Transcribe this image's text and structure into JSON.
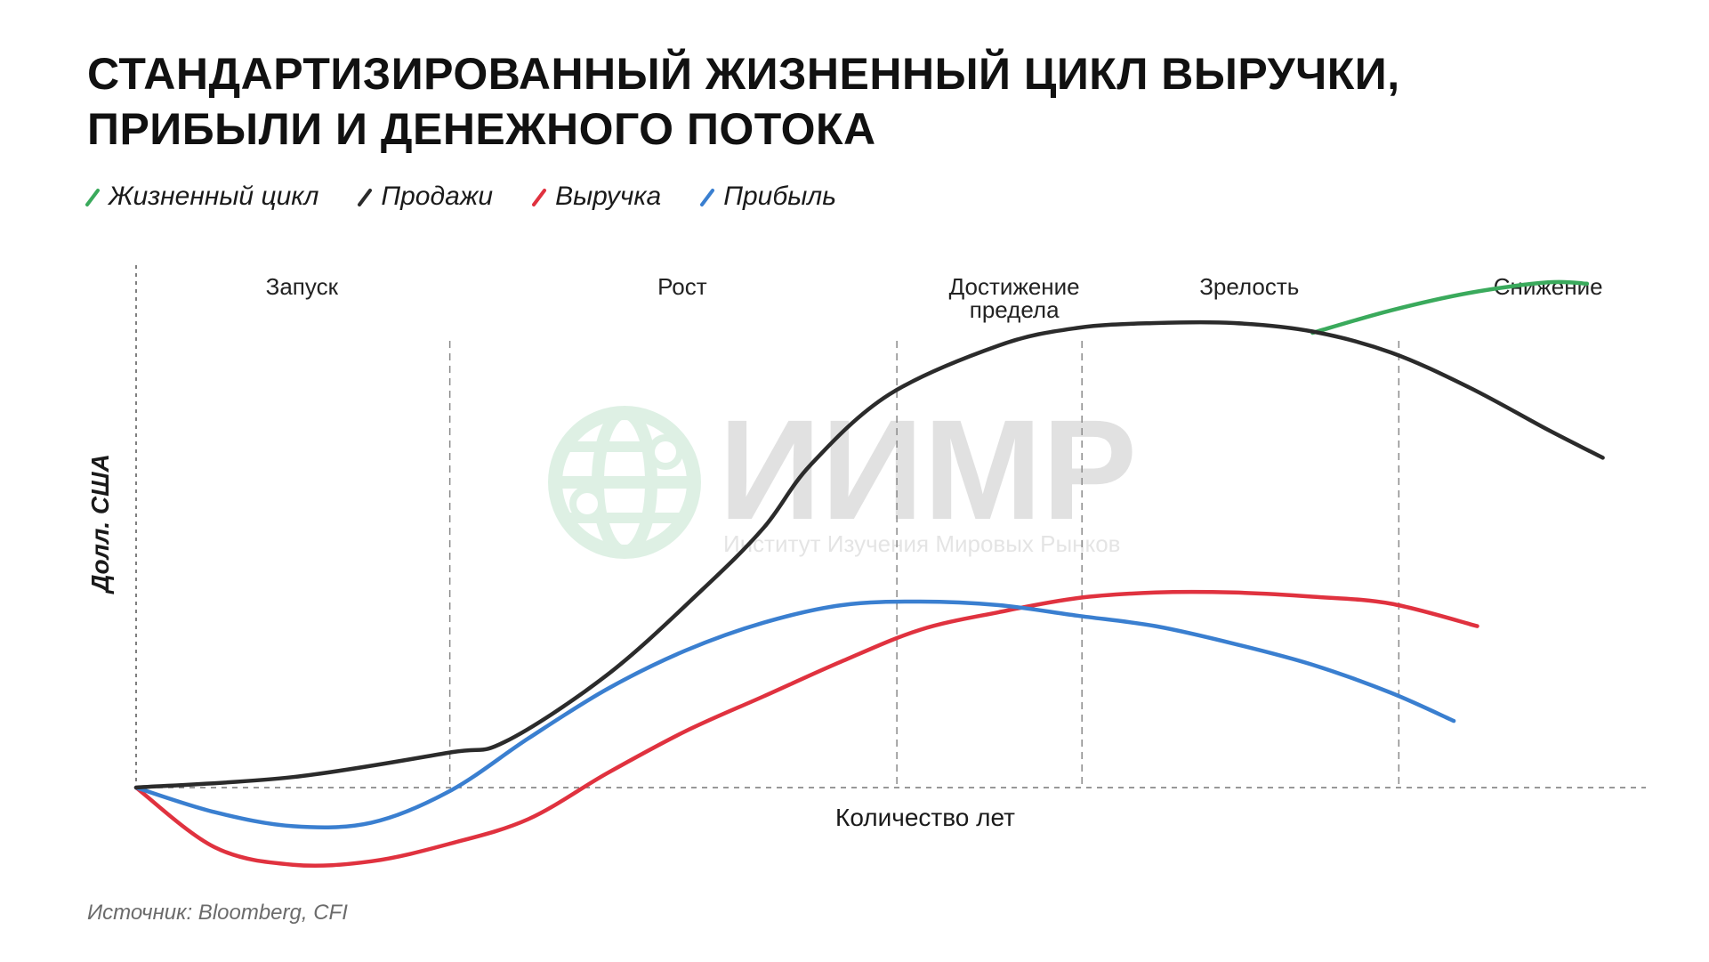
{
  "title": {
    "line1": "Стандартизированный жизненный цикл выручки,",
    "line2": "прибыли и денежного потока"
  },
  "legend": [
    {
      "label": "Жизненный цикл",
      "color": "#3aaa5c"
    },
    {
      "label": "Продажи",
      "color": "#2b2b2b"
    },
    {
      "label": "Выручка",
      "color": "#e0323f"
    },
    {
      "label": "Прибыль",
      "color": "#3a7fd0"
    }
  ],
  "source": "Источник: Bloomberg, CFI",
  "watermark": {
    "name": "ИИМР",
    "subtitle": "Институт Изучения Мировых Рынков",
    "icon": "globe-icon"
  },
  "chart_data": {
    "type": "line",
    "xlabel": "Количество лет",
    "ylabel": "Долл. США",
    "stages": [
      {
        "label": "Запуск",
        "start": 0,
        "end": 2
      },
      {
        "label": "Рост",
        "start": 2,
        "end": 4.85
      },
      {
        "label": "Достижение\nпредела",
        "start": 4.85,
        "end": 6.03
      },
      {
        "label": "Зрелость",
        "start": 6.03,
        "end": 8.05
      },
      {
        "label": "Снижение",
        "start": 8.05,
        "end": 9.5
      }
    ],
    "xlim": [
      0,
      9.5
    ],
    "ylim": [
      -1.1,
      7.0
    ],
    "series": [
      {
        "name": "Продажи",
        "color": "#2b2b2b",
        "points": [
          [
            0,
            0
          ],
          [
            1,
            0.15
          ],
          [
            2,
            0.5
          ],
          [
            2.35,
            0.65
          ],
          [
            3,
            1.6
          ],
          [
            3.6,
            2.8
          ],
          [
            4,
            3.7
          ],
          [
            4.3,
            4.6
          ],
          [
            4.8,
            5.6
          ],
          [
            5.5,
            6.3
          ],
          [
            6,
            6.55
          ],
          [
            6.5,
            6.62
          ],
          [
            7,
            6.62
          ],
          [
            7.5,
            6.5
          ],
          [
            8,
            6.2
          ],
          [
            8.5,
            5.7
          ],
          [
            9,
            5.1
          ],
          [
            9.35,
            4.7
          ]
        ]
      },
      {
        "name": "Прибыль",
        "color": "#3a7fd0",
        "points": [
          [
            0,
            0
          ],
          [
            0.5,
            -0.35
          ],
          [
            1,
            -0.55
          ],
          [
            1.5,
            -0.5
          ],
          [
            2,
            -0.05
          ],
          [
            2.5,
            0.7
          ],
          [
            3,
            1.4
          ],
          [
            3.5,
            1.95
          ],
          [
            4,
            2.35
          ],
          [
            4.5,
            2.6
          ],
          [
            5,
            2.65
          ],
          [
            5.5,
            2.6
          ],
          [
            6,
            2.45
          ],
          [
            6.5,
            2.3
          ],
          [
            7,
            2.05
          ],
          [
            7.5,
            1.75
          ],
          [
            8,
            1.35
          ],
          [
            8.4,
            0.95
          ]
        ]
      },
      {
        "name": "Выручка",
        "color": "#e0323f",
        "points": [
          [
            0,
            0
          ],
          [
            0.5,
            -0.85
          ],
          [
            1,
            -1.1
          ],
          [
            1.5,
            -1.05
          ],
          [
            2,
            -0.8
          ],
          [
            2.5,
            -0.45
          ],
          [
            3,
            0.2
          ],
          [
            3.5,
            0.8
          ],
          [
            4,
            1.3
          ],
          [
            4.5,
            1.8
          ],
          [
            5,
            2.25
          ],
          [
            5.5,
            2.5
          ],
          [
            6,
            2.7
          ],
          [
            6.5,
            2.78
          ],
          [
            7,
            2.78
          ],
          [
            7.5,
            2.72
          ],
          [
            8,
            2.62
          ],
          [
            8.55,
            2.3
          ]
        ]
      },
      {
        "name": "Жизненный цикл",
        "color": "#3aaa5c",
        "points": [
          [
            7.5,
            6.48
          ],
          [
            8,
            6.8
          ],
          [
            8.5,
            7.05
          ],
          [
            9,
            7.2
          ],
          [
            9.25,
            7.18
          ]
        ]
      }
    ]
  }
}
